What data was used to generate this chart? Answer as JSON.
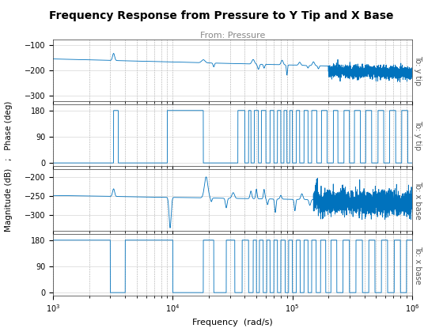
{
  "title": "Frequency Response from Pressure to Y Tip and X Base",
  "subtitle": "From: Pressure",
  "xlabel": "Frequency  (rad/s)",
  "ylabel_combined": "Magnitude (dB)   ;   Phase (deg)",
  "label_ytip_mag": "To: y tip",
  "label_ytip_phase": "To: y tip",
  "label_xbase_mag": "To: x base",
  "label_xbase_phase": "To: x base",
  "freq_range": [
    1000,
    1000000
  ],
  "ytip_mag_ylim": [
    -320,
    -80
  ],
  "ytip_mag_yticks": [
    -300,
    -200,
    -100
  ],
  "ytip_phase_ylim": [
    -10,
    200
  ],
  "ytip_phase_yticks": [
    0,
    90,
    180
  ],
  "xbase_mag_ylim": [
    -340,
    -180
  ],
  "xbase_mag_yticks": [
    -300,
    -250,
    -200
  ],
  "xbase_phase_ylim": [
    -10,
    200
  ],
  "xbase_phase_yticks": [
    0,
    90,
    180
  ],
  "line_color": "#0072BD",
  "grid_color": "#AAAAAA",
  "bg_color": "#FFFFFF",
  "title_fontsize": 10,
  "subtitle_fontsize": 8,
  "axis_label_fontsize": 8,
  "tick_fontsize": 7,
  "row_label_fontsize": 7
}
